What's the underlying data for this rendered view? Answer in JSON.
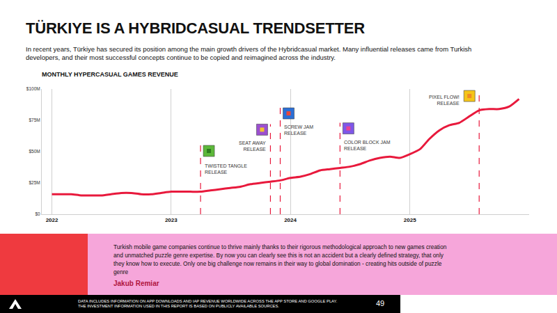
{
  "header": {
    "title": "TÜRKIYE IS A HYBRIDCASUAL TRENDSETTER",
    "subtitle": "In recent years, Türkiye has secured its position among the main growth drivers of the Hybridcasual market. Many influential releases came from Turkish developers, and their most successful concepts continue to be copied and reimagined across the industry."
  },
  "chart_data": {
    "type": "line",
    "title": "MONTHLY HYPERCASUAL GAMES REVENUE",
    "x": [
      "2022-01",
      "2022-02",
      "2022-03",
      "2022-04",
      "2022-05",
      "2022-06",
      "2022-07",
      "2022-08",
      "2022-09",
      "2022-10",
      "2022-11",
      "2022-12",
      "2023-01",
      "2023-02",
      "2023-03",
      "2023-04",
      "2023-05",
      "2023-06",
      "2023-07",
      "2023-08",
      "2023-09",
      "2023-10",
      "2023-11",
      "2023-12",
      "2024-01",
      "2024-02",
      "2024-03",
      "2024-04",
      "2024-05",
      "2024-06",
      "2024-07",
      "2024-08",
      "2024-09",
      "2024-10",
      "2024-11",
      "2024-12",
      "2025-01",
      "2025-02",
      "2025-03",
      "2025-04",
      "2025-05",
      "2025-06",
      "2025-07",
      "2025-08",
      "2025-09",
      "2025-10",
      "2025-11",
      "2025-12"
    ],
    "values": [
      16,
      16,
      16,
      15,
      15,
      15,
      16,
      17,
      17,
      16,
      16,
      17,
      18,
      18,
      18,
      18,
      19,
      20,
      21,
      22,
      24,
      25,
      26,
      27,
      29,
      30,
      32,
      35,
      36,
      37,
      38,
      40,
      43,
      45,
      46,
      45,
      48,
      52,
      60,
      67,
      71,
      73,
      78,
      83,
      84,
      84,
      86,
      92
    ],
    "color": "#e8193c",
    "xlim": [
      "2021-12",
      "2026-01"
    ],
    "xticks": [
      {
        "value": "2022-01",
        "label": "2022"
      },
      {
        "value": "2023-01",
        "label": "2023"
      },
      {
        "value": "2024-01",
        "label": "2024"
      },
      {
        "value": "2025-01",
        "label": "2025"
      }
    ],
    "ylim": [
      0,
      100
    ],
    "yticks": [
      {
        "value": 0,
        "label": "$0"
      },
      {
        "value": 25,
        "label": "$25M"
      },
      {
        "value": 50,
        "label": "$50M"
      },
      {
        "value": 75,
        "label": "$75M"
      },
      {
        "value": 100,
        "label": "$100M"
      }
    ],
    "grid": true,
    "annotations": [
      {
        "x": "2023-04",
        "y": 55,
        "text": "TWISTED TANGLE RELEASE"
      },
      {
        "x": "2023-11",
        "y": 72,
        "text": "SEAT AWAY RELEASE"
      },
      {
        "x": "2023-12",
        "y": 85,
        "text": "SCREW JAM RELEASE"
      },
      {
        "x": "2024-06",
        "y": 73,
        "text": "COLOR BLOCK JAM RELEASE"
      },
      {
        "x": "2025-08",
        "y": 100,
        "text": "PIXEL FLOW! RELEASE"
      }
    ]
  },
  "quote": {
    "text": "Turkish mobile game companies continue to thrive mainly thanks to their rigorous methodological approach to new games creation and unmatched puzzle genre expertise. By now you can clearly see this is not an accident but a clearly defined strategy, that only they know how to execute. Only one big challenge now remains in their way to global domination - creating hits outside of puzzle genre",
    "author": "Jakub Remiar"
  },
  "footer": {
    "notes": [
      "DATA INCLUDES INFORMATION ON APP DOWNLOADS AND IAP REVENUE WORLDWIDE ACROSS THE APP STORE AND GOOGLE PLAY.",
      "THE INVESTMENT INFORMATION USED IN THIS REPORT IS BASED ON PUBLICLY AVAILABLE SOURCES."
    ],
    "page": 49
  }
}
